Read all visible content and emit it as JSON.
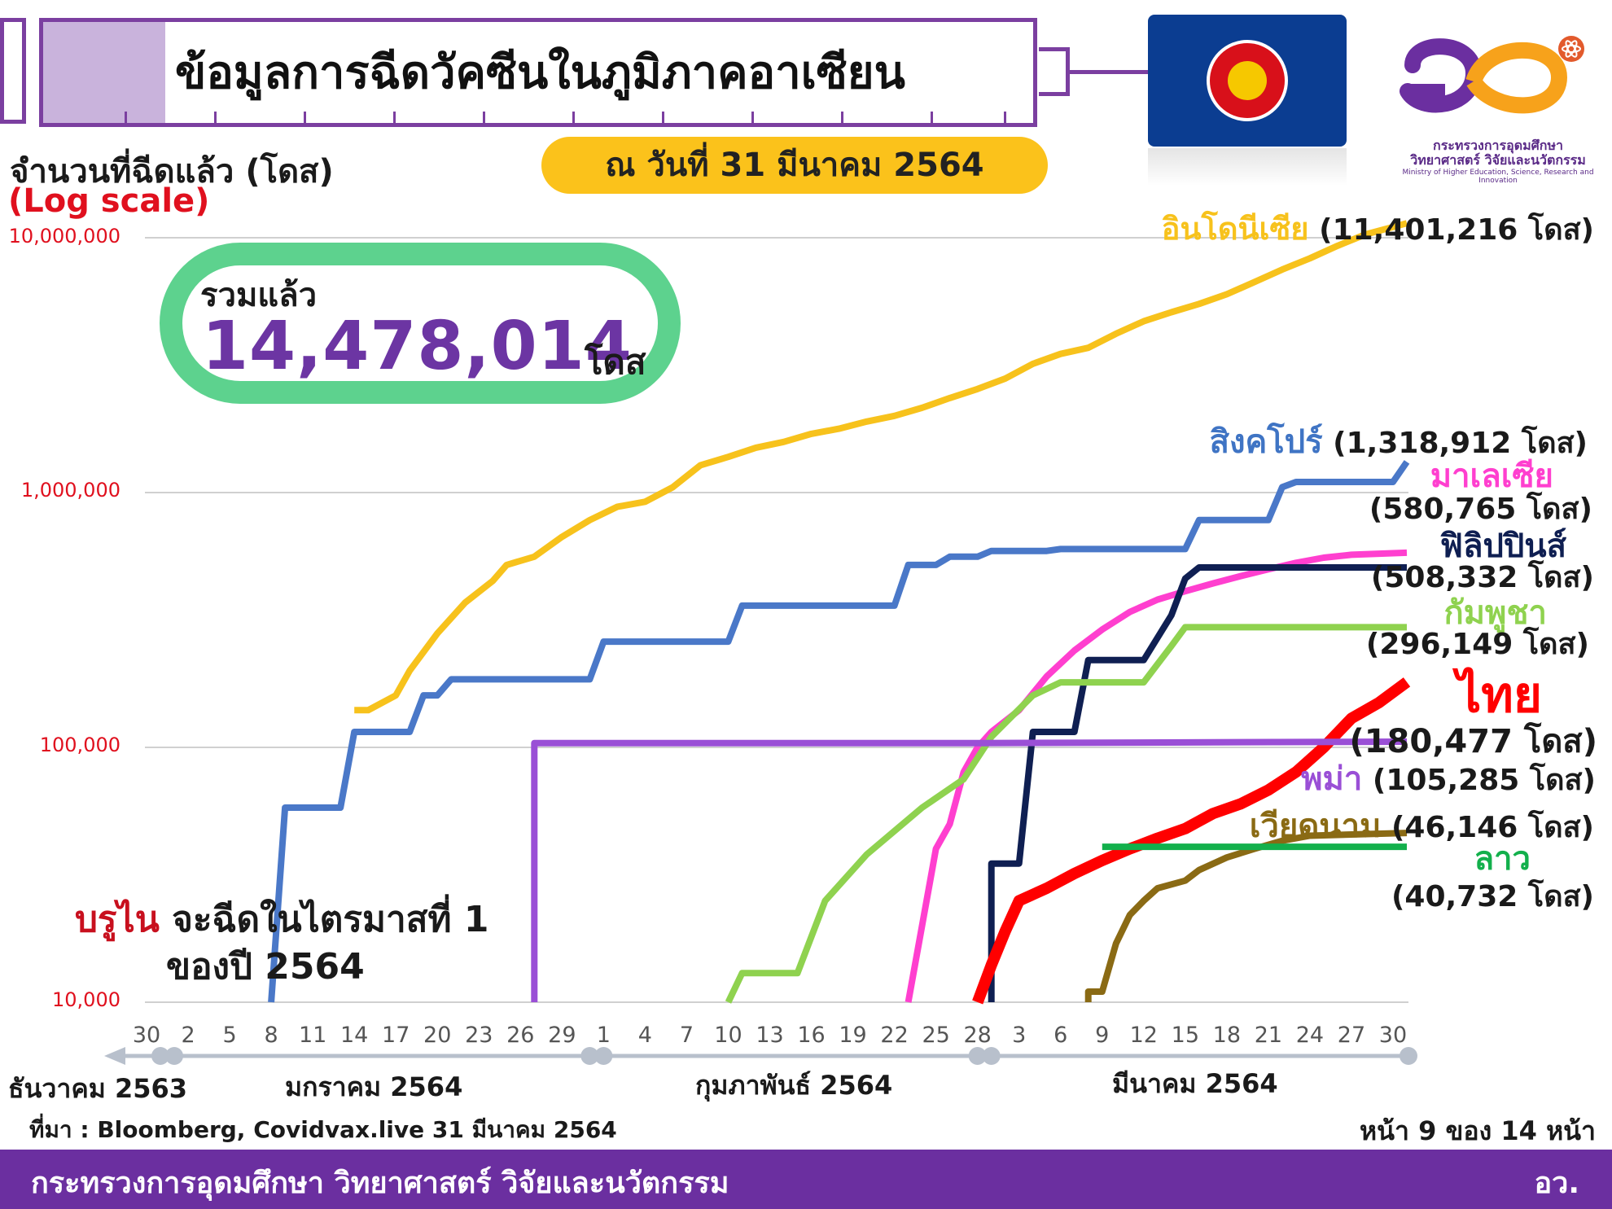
{
  "header": {
    "title": "ข้อมูลการฉีดวัคซีนในภูมิภาคอาเซียน",
    "date": "ณ วันที่ 31 มีนาคม  2564"
  },
  "logo": {
    "ministry_th": "กระทรวงการอุดมศึกษา",
    "ministry_th_2": "วิทยาศาสตร์ วิจัยและนวัตกรรม",
    "ministry_en": "Ministry of Higher Education, Science, Research and Innovation"
  },
  "total": {
    "label": "รวมแล้ว",
    "value": "14,478,014",
    "unit": "โดส"
  },
  "chart_data": {
    "type": "line",
    "ylabel": "จำนวนที่ฉีดแล้ว (โดส)",
    "yscale_note": "(Log scale)",
    "yscale": "log",
    "ylim": [
      10000,
      10000000
    ],
    "y_ticks": [
      "10,000,000",
      "1,000,000",
      "100,000",
      "10,000"
    ],
    "x_range": [
      "2020-12-30",
      "2021-03-31"
    ],
    "x_ticks": [
      "30",
      "2",
      "5",
      "8",
      "11",
      "14",
      "17",
      "20",
      "23",
      "26",
      "29",
      "1",
      "4",
      "7",
      "10",
      "13",
      "16",
      "19",
      "22",
      "25",
      "28",
      "3",
      "6",
      "9",
      "12",
      "15",
      "18",
      "21",
      "24",
      "27",
      "30"
    ],
    "months": [
      "ธันวาคม 2563",
      "มกราคม 2564",
      "กุมภาพันธ์ 2564",
      "มีนาคม 2564"
    ],
    "grid": true,
    "series": [
      {
        "name": "อินโดนีเซีย",
        "total_label": "(11,401,216 โดส)",
        "color": "#f7c21c",
        "points": [
          [
            "2021-01-14",
            140000
          ],
          [
            "2021-01-15",
            140000
          ],
          [
            "2021-01-17",
            160000
          ],
          [
            "2021-01-18",
            200000
          ],
          [
            "2021-01-20",
            280000
          ],
          [
            "2021-01-22",
            370000
          ],
          [
            "2021-01-24",
            450000
          ],
          [
            "2021-01-25",
            520000
          ],
          [
            "2021-01-27",
            560000
          ],
          [
            "2021-01-29",
            670000
          ],
          [
            "2021-01-31",
            780000
          ],
          [
            "2021-02-02",
            880000
          ],
          [
            "2021-02-04",
            920000
          ],
          [
            "2021-02-06",
            1050000
          ],
          [
            "2021-02-08",
            1280000
          ],
          [
            "2021-02-10",
            1380000
          ],
          [
            "2021-02-12",
            1500000
          ],
          [
            "2021-02-14",
            1580000
          ],
          [
            "2021-02-16",
            1700000
          ],
          [
            "2021-02-18",
            1780000
          ],
          [
            "2021-02-20",
            1900000
          ],
          [
            "2021-02-22",
            2000000
          ],
          [
            "2021-02-24",
            2150000
          ],
          [
            "2021-02-26",
            2350000
          ],
          [
            "2021-02-28",
            2550000
          ],
          [
            "2021-03-02",
            2800000
          ],
          [
            "2021-03-04",
            3200000
          ],
          [
            "2021-03-06",
            3500000
          ],
          [
            "2021-03-08",
            3700000
          ],
          [
            "2021-03-10",
            4200000
          ],
          [
            "2021-03-12",
            4700000
          ],
          [
            "2021-03-14",
            5100000
          ],
          [
            "2021-03-16",
            5500000
          ],
          [
            "2021-03-18",
            6000000
          ],
          [
            "2021-03-20",
            6700000
          ],
          [
            "2021-03-22",
            7500000
          ],
          [
            "2021-03-24",
            8300000
          ],
          [
            "2021-03-26",
            9300000
          ],
          [
            "2021-03-28",
            10300000
          ],
          [
            "2021-03-31",
            11401216
          ]
        ]
      },
      {
        "name": "สิงคโปร์",
        "total_label": "(1,318,912 โดส)",
        "color": "#4a78c8",
        "points": [
          [
            "2021-01-08",
            10000
          ],
          [
            "2021-01-09",
            58000
          ],
          [
            "2021-01-13",
            58000
          ],
          [
            "2021-01-14",
            115000
          ],
          [
            "2021-01-18",
            115000
          ],
          [
            "2021-01-19",
            160000
          ],
          [
            "2021-01-20",
            160000
          ],
          [
            "2021-01-21",
            185000
          ],
          [
            "2021-01-31",
            185000
          ],
          [
            "2021-02-01",
            260000
          ],
          [
            "2021-02-10",
            260000
          ],
          [
            "2021-02-11",
            360000
          ],
          [
            "2021-02-22",
            360000
          ],
          [
            "2021-02-23",
            520000
          ],
          [
            "2021-02-25",
            520000
          ],
          [
            "2021-02-26",
            560000
          ],
          [
            "2021-02-28",
            560000
          ],
          [
            "2021-03-01",
            590000
          ],
          [
            "2021-03-05",
            590000
          ],
          [
            "2021-03-06",
            600000
          ],
          [
            "2021-03-15",
            600000
          ],
          [
            "2021-03-16",
            780000
          ],
          [
            "2021-03-21",
            780000
          ],
          [
            "2021-03-22",
            1050000
          ],
          [
            "2021-03-23",
            1100000
          ],
          [
            "2021-03-30",
            1100000
          ],
          [
            "2021-03-31",
            1318912
          ]
        ]
      },
      {
        "name": "มาเลเซีย",
        "total_label": "(580,765 โดส)",
        "color": "#ff3fcf",
        "points": [
          [
            "2021-02-23",
            10000
          ],
          [
            "2021-02-25",
            40000
          ],
          [
            "2021-02-26",
            50000
          ],
          [
            "2021-02-27",
            80000
          ],
          [
            "2021-02-28",
            100000
          ],
          [
            "2021-03-01",
            115000
          ],
          [
            "2021-03-03",
            140000
          ],
          [
            "2021-03-05",
            190000
          ],
          [
            "2021-03-07",
            240000
          ],
          [
            "2021-03-09",
            290000
          ],
          [
            "2021-03-11",
            340000
          ],
          [
            "2021-03-13",
            380000
          ],
          [
            "2021-03-15",
            410000
          ],
          [
            "2021-03-17",
            440000
          ],
          [
            "2021-03-19",
            470000
          ],
          [
            "2021-03-21",
            500000
          ],
          [
            "2021-03-23",
            530000
          ],
          [
            "2021-03-25",
            555000
          ],
          [
            "2021-03-27",
            570000
          ],
          [
            "2021-03-31",
            580765
          ]
        ]
      },
      {
        "name": "ฟิลิปปินส์",
        "total_label": "(508,332 โดส)",
        "color": "#0f1f52",
        "points": [
          [
            "2021-03-01",
            10000
          ],
          [
            "2021-03-01",
            35000
          ],
          [
            "2021-03-03",
            35000
          ],
          [
            "2021-03-04",
            115000
          ],
          [
            "2021-03-07",
            115000
          ],
          [
            "2021-03-08",
            220000
          ],
          [
            "2021-03-12",
            220000
          ],
          [
            "2021-03-14",
            330000
          ],
          [
            "2021-03-15",
            460000
          ],
          [
            "2021-03-16",
            508332
          ],
          [
            "2021-03-31",
            508332
          ]
        ]
      },
      {
        "name": "กัมพูชา",
        "total_label": "(296,149 โดส)",
        "color": "#8fd24f",
        "points": [
          [
            "2021-02-10",
            10000
          ],
          [
            "2021-02-11",
            13000
          ],
          [
            "2021-02-15",
            13000
          ],
          [
            "2021-02-17",
            25000
          ],
          [
            "2021-02-20",
            38000
          ],
          [
            "2021-02-24",
            58000
          ],
          [
            "2021-02-27",
            75000
          ],
          [
            "2021-03-01",
            110000
          ],
          [
            "2021-03-04",
            160000
          ],
          [
            "2021-03-06",
            180000
          ],
          [
            "2021-03-12",
            180000
          ],
          [
            "2021-03-14",
            250000
          ],
          [
            "2021-03-15",
            296149
          ],
          [
            "2021-03-31",
            296149
          ]
        ]
      },
      {
        "name": "ไทย",
        "total_label": "(180,477 โดส)",
        "color": "#ff0000",
        "points": [
          [
            "2021-02-28",
            10000
          ],
          [
            "2021-03-01",
            14000
          ],
          [
            "2021-03-02",
            19000
          ],
          [
            "2021-03-03",
            25000
          ],
          [
            "2021-03-05",
            28000
          ],
          [
            "2021-03-07",
            32000
          ],
          [
            "2021-03-09",
            36000
          ],
          [
            "2021-03-11",
            40000
          ],
          [
            "2021-03-13",
            44000
          ],
          [
            "2021-03-15",
            48000
          ],
          [
            "2021-03-17",
            55000
          ],
          [
            "2021-03-19",
            60000
          ],
          [
            "2021-03-21",
            68000
          ],
          [
            "2021-03-23",
            80000
          ],
          [
            "2021-03-25",
            100000
          ],
          [
            "2021-03-27",
            130000
          ],
          [
            "2021-03-29",
            150000
          ],
          [
            "2021-03-31",
            180477
          ]
        ]
      },
      {
        "name": "พม่า",
        "total_label": "(105,285 โดส)",
        "color": "#9a4fd6",
        "points": [
          [
            "2021-01-27",
            10000
          ],
          [
            "2021-01-27",
            104000
          ],
          [
            "2021-02-28",
            104000
          ],
          [
            "2021-03-31",
            105285
          ]
        ]
      },
      {
        "name": "เวียดนาม",
        "total_label": "(46,146 โดส)",
        "color": "#8a6a14",
        "points": [
          [
            "2021-03-08",
            10000
          ],
          [
            "2021-03-08",
            11000
          ],
          [
            "2021-03-09",
            11000
          ],
          [
            "2021-03-10",
            17000
          ],
          [
            "2021-03-11",
            22000
          ],
          [
            "2021-03-12",
            25000
          ],
          [
            "2021-03-13",
            28000
          ],
          [
            "2021-03-15",
            30000
          ],
          [
            "2021-03-16",
            33000
          ],
          [
            "2021-03-18",
            37000
          ],
          [
            "2021-03-20",
            40000
          ],
          [
            "2021-03-22",
            43000
          ],
          [
            "2021-03-24",
            45000
          ],
          [
            "2021-03-31",
            46146
          ]
        ]
      },
      {
        "name": "ลาว",
        "total_label": "(40,732 โดส)",
        "color": "#13b04c",
        "points": [
          [
            "2021-03-09",
            40732
          ],
          [
            "2021-03-31",
            40732
          ]
        ]
      }
    ],
    "annotation": {
      "brunei_name": "บรูไน",
      "brunei_text": "จะฉีดในไตรมาสที่ 1",
      "brunei_text_2": "ของปี 2564"
    }
  },
  "footer": {
    "source": "ที่มา : Bloomberg, Covidvax.live 31 มีนาคม 2564",
    "page": "หน้า 9 ของ 14 หน้า",
    "ministry": "กระทรวงการอุดมศึกษา วิทยาศาสตร์ วิจัยและนวัตกรรม",
    "abbr": "อว."
  }
}
